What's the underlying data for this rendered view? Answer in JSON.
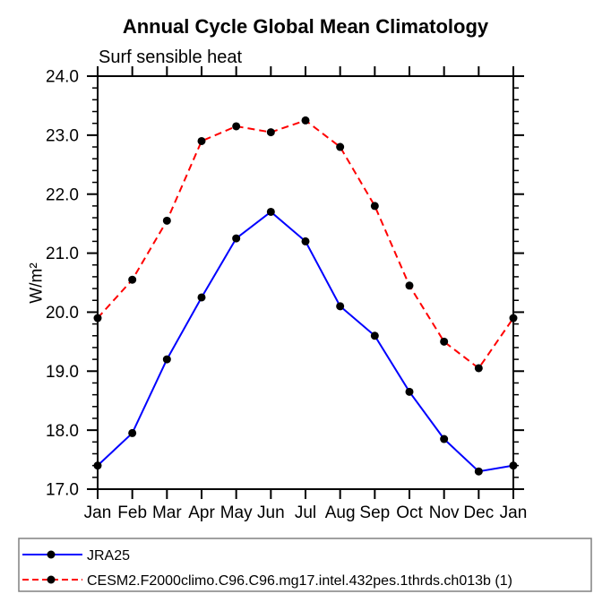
{
  "title": "Annual Cycle Global Mean Climatology",
  "subtitle": "Surf sensible heat",
  "colors": {
    "background": "#ffffff",
    "axis": "#000000",
    "marker": "#000000",
    "jra25_line": "#0000ff",
    "cesm2_line": "#ff0000",
    "legend_border": "#808080"
  },
  "chart_data": {
    "type": "line",
    "title": "Annual Cycle Global Mean Climatology",
    "subtitle": "Surf sensible heat",
    "xlabel": "",
    "ylabel": "W/m²",
    "x_categories": [
      "Jan",
      "Feb",
      "Mar",
      "Apr",
      "May",
      "Jun",
      "Jul",
      "Aug",
      "Sep",
      "Oct",
      "Nov",
      "Dec",
      "Jan"
    ],
    "ylim": [
      17.0,
      24.0
    ],
    "ytick_major_values": [
      17.0,
      18.0,
      19.0,
      20.0,
      21.0,
      22.0,
      23.0,
      24.0
    ],
    "ytick_major_labels": [
      "17.0",
      "18.0",
      "19.0",
      "20.0",
      "21.0",
      "22.0",
      "23.0",
      "24.0"
    ],
    "ytick_minor_step": 0.2,
    "grid": "off",
    "legend_position": "bottom-left-box",
    "series": [
      {
        "name": "JRA25",
        "color": "#0000ff",
        "line_style": "solid",
        "marker": "filled-circle",
        "marker_color": "#000000",
        "values": [
          17.4,
          17.95,
          19.2,
          20.25,
          21.25,
          21.7,
          21.2,
          20.1,
          19.6,
          18.65,
          17.85,
          17.3,
          17.4
        ]
      },
      {
        "name": "CESM2.F2000climo.C96.C96.mg17.intel.432pes.1thrds.ch013b (1)",
        "color": "#ff0000",
        "line_style": "dashed",
        "marker": "filled-circle",
        "marker_color": "#000000",
        "values": [
          19.9,
          20.55,
          21.55,
          22.9,
          23.15,
          23.05,
          23.25,
          22.8,
          21.8,
          20.45,
          19.5,
          19.05,
          19.9
        ]
      }
    ]
  }
}
